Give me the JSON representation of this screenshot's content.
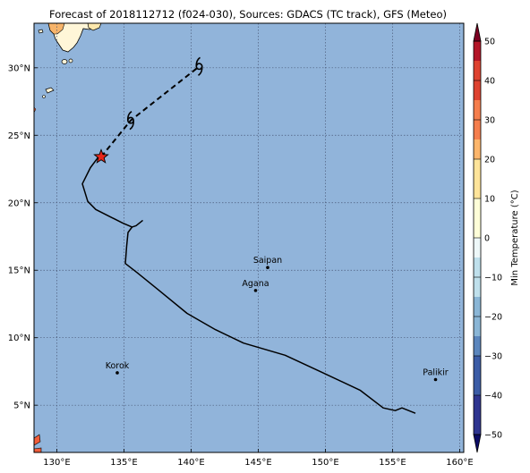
{
  "title": "Forecast of 2018112712 (f024-030), Sources: GDACS (TC track), GFS (Meteo)",
  "map": {
    "lon_range": [
      128.3,
      160.3
    ],
    "lat_range": [
      1.5,
      33.3
    ],
    "lon_ticks": [
      130,
      135,
      140,
      145,
      150,
      155,
      160
    ],
    "lon_tick_labels": [
      "130°E",
      "135°E",
      "140°E",
      "145°E",
      "150°E",
      "155°E",
      "160°E"
    ],
    "lat_ticks": [
      5,
      10,
      15,
      20,
      25,
      30
    ],
    "lat_tick_labels": [
      "5°N",
      "10°N",
      "15°N",
      "20°N",
      "25°N",
      "30°N"
    ],
    "grid": "dotted",
    "ocean_color": "#91b4da"
  },
  "chart_data": {
    "type": "map",
    "past_track": [
      [
        136.4,
        18.7
      ],
      [
        135.9,
        18.3
      ],
      [
        135.6,
        18.2
      ],
      [
        134.9,
        18.5
      ],
      [
        134.1,
        18.9
      ],
      [
        132.9,
        19.5
      ],
      [
        132.3,
        20.1
      ],
      [
        131.9,
        21.4
      ],
      [
        132.5,
        22.6
      ],
      [
        133.1,
        23.4
      ]
    ],
    "track_west_branch": [
      [
        135.6,
        18.2
      ],
      [
        135.3,
        17.8
      ],
      [
        135.2,
        16.8
      ],
      [
        135.1,
        15.5
      ],
      [
        136.0,
        14.8
      ],
      [
        137.5,
        13.6
      ],
      [
        139.7,
        11.8
      ],
      [
        141.8,
        10.6
      ],
      [
        143.9,
        9.6
      ],
      [
        147.0,
        8.7
      ],
      [
        149.6,
        7.5
      ],
      [
        152.6,
        6.1
      ],
      [
        154.3,
        4.8
      ],
      [
        155.2,
        4.6
      ],
      [
        155.7,
        4.8
      ],
      [
        156.7,
        4.4
      ]
    ],
    "forecast_track": [
      [
        133.3,
        23.4
      ],
      [
        135.5,
        26.1
      ],
      [
        140.6,
        30.1
      ]
    ],
    "storm_position": [
      133.3,
      23.4
    ],
    "forecast_symbols": [
      [
        135.5,
        26.1
      ],
      [
        140.6,
        30.1
      ]
    ],
    "places": [
      {
        "name": "Saipan",
        "lon": 145.7,
        "lat": 15.2
      },
      {
        "name": "Agana",
        "lon": 144.8,
        "lat": 13.5
      },
      {
        "name": "Korok",
        "lon": 134.5,
        "lat": 7.4
      },
      {
        "name": "Palikir",
        "lon": 158.2,
        "lat": 6.9
      }
    ],
    "colorbar": {
      "label": "Min Temperature (°C)",
      "min": -55,
      "max": 55,
      "ticks": [
        -50,
        -40,
        -30,
        -20,
        -10,
        0,
        10,
        20,
        30,
        40,
        50
      ],
      "tick_labels": [
        "−50",
        "−40",
        "−30",
        "−20",
        "−10",
        "0",
        "10",
        "20",
        "30",
        "40",
        "50"
      ],
      "colors": [
        "#0c0c66",
        "#2e3590",
        "#3b5ca6",
        "#5b86bd",
        "#8ab6d6",
        "#bfe0ec",
        "#eef8f9",
        "#fefed8",
        "#fee49a",
        "#fdb66b",
        "#f57e4d",
        "#de4230",
        "#b31527",
        "#7c0022"
      ]
    }
  }
}
